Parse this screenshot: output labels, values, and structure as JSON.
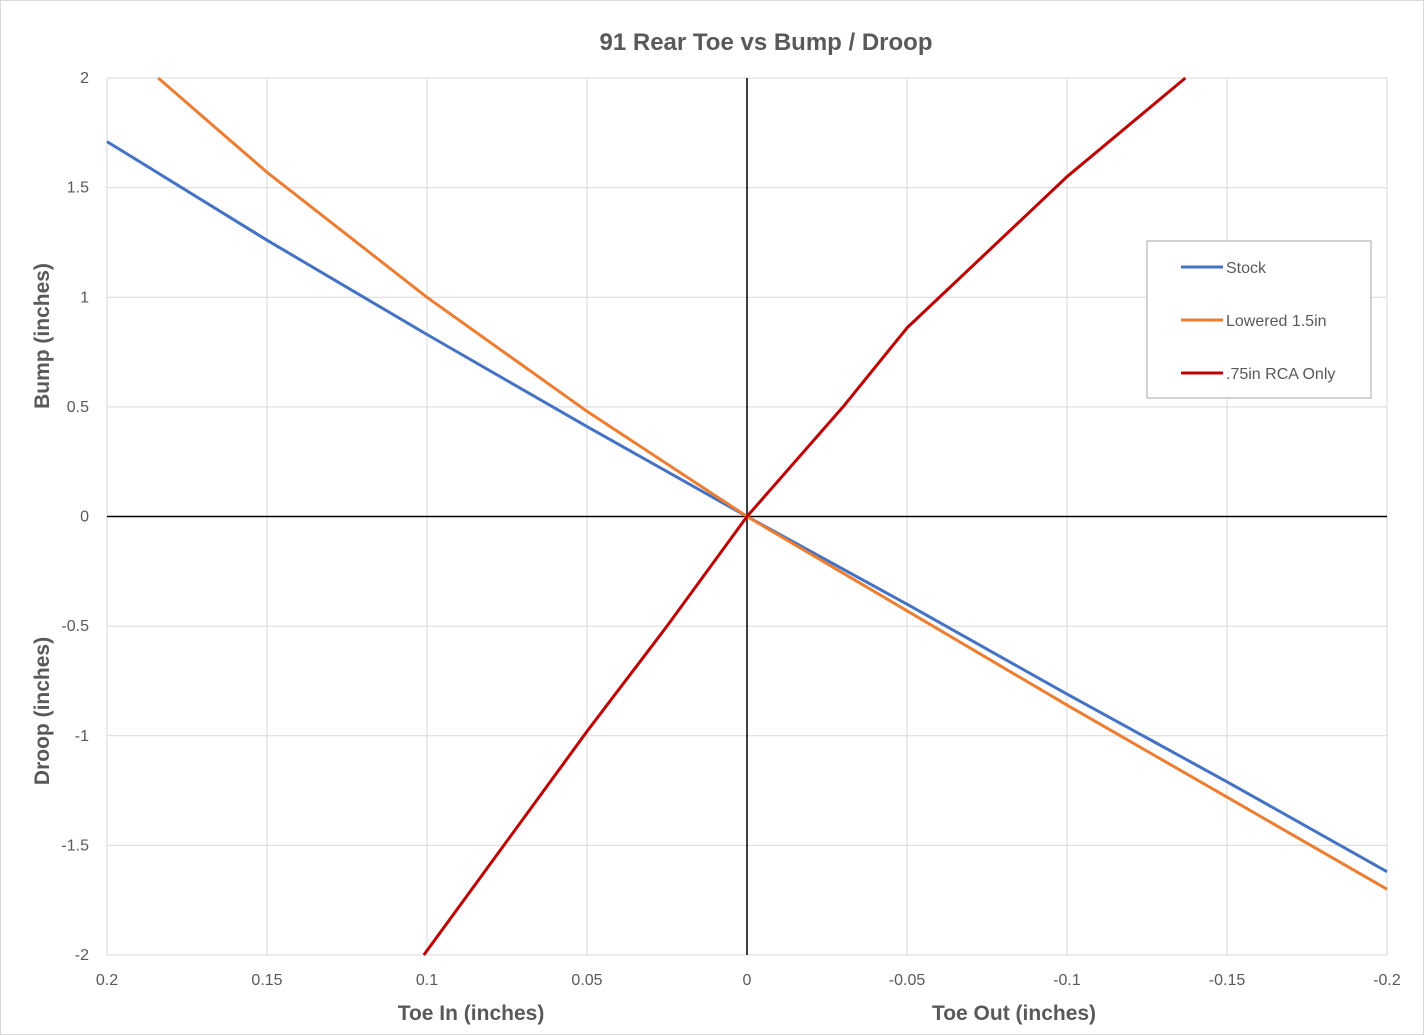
{
  "chart_data": {
    "type": "line",
    "title": "91 Rear Toe vs Bump / Droop",
    "xlabels": {
      "left": "Toe In (inches)",
      "right": "Toe Out (inches)"
    },
    "ylabels": {
      "top": "Bump (inches)",
      "bottom": "Droop (inches)"
    },
    "xlim": [
      0.2,
      -0.2
    ],
    "ylim": [
      -2,
      2
    ],
    "x_reversed": true,
    "xticks": [
      0.2,
      0.15,
      0.1,
      0.05,
      0,
      -0.05,
      -0.1,
      -0.15,
      -0.2
    ],
    "xtick_labels": [
      "0.2",
      "0.15",
      "0.1",
      "0.05",
      "0",
      "-0.05",
      "-0.1",
      "-0.15",
      "-0.2"
    ],
    "yticks": [
      2,
      1.5,
      1,
      0.5,
      0,
      -0.5,
      -1,
      -1.5,
      -2
    ],
    "ytick_labels": [
      "2",
      "1.5",
      "1",
      "0.5",
      "0",
      "-0.5",
      "-1",
      "-1.5",
      "-2"
    ],
    "grid": true,
    "legend_position": "right",
    "series": [
      {
        "name": "Stock",
        "color": "#4472c4",
        "points": [
          [
            0.2,
            1.71
          ],
          [
            0.15,
            1.26
          ],
          [
            0.1,
            0.83
          ],
          [
            0.05,
            0.41
          ],
          [
            0,
            0
          ],
          [
            -0.05,
            -0.4
          ],
          [
            -0.1,
            -0.81
          ],
          [
            -0.15,
            -1.21
          ],
          [
            -0.2,
            -1.62
          ]
        ]
      },
      {
        "name": "Lowered 1.5in",
        "color": "#ed7d31",
        "points": [
          [
            0.184,
            2.0
          ],
          [
            0.15,
            1.57
          ],
          [
            0.1,
            1.0
          ],
          [
            0.05,
            0.48
          ],
          [
            0,
            0
          ],
          [
            -0.05,
            -0.43
          ],
          [
            -0.1,
            -0.86
          ],
          [
            -0.15,
            -1.28
          ],
          [
            -0.2,
            -1.7
          ]
        ]
      },
      {
        "name": ".75in RCA Only",
        "color": "#c00000",
        "points": [
          [
            0.101,
            -2.0
          ],
          [
            0.05,
            -0.98
          ],
          [
            0.025,
            -0.5
          ],
          [
            0,
            0
          ],
          [
            -0.03,
            0.5
          ],
          [
            -0.05,
            0.86
          ],
          [
            -0.1,
            1.55
          ],
          [
            -0.137,
            2.0
          ]
        ]
      }
    ]
  }
}
